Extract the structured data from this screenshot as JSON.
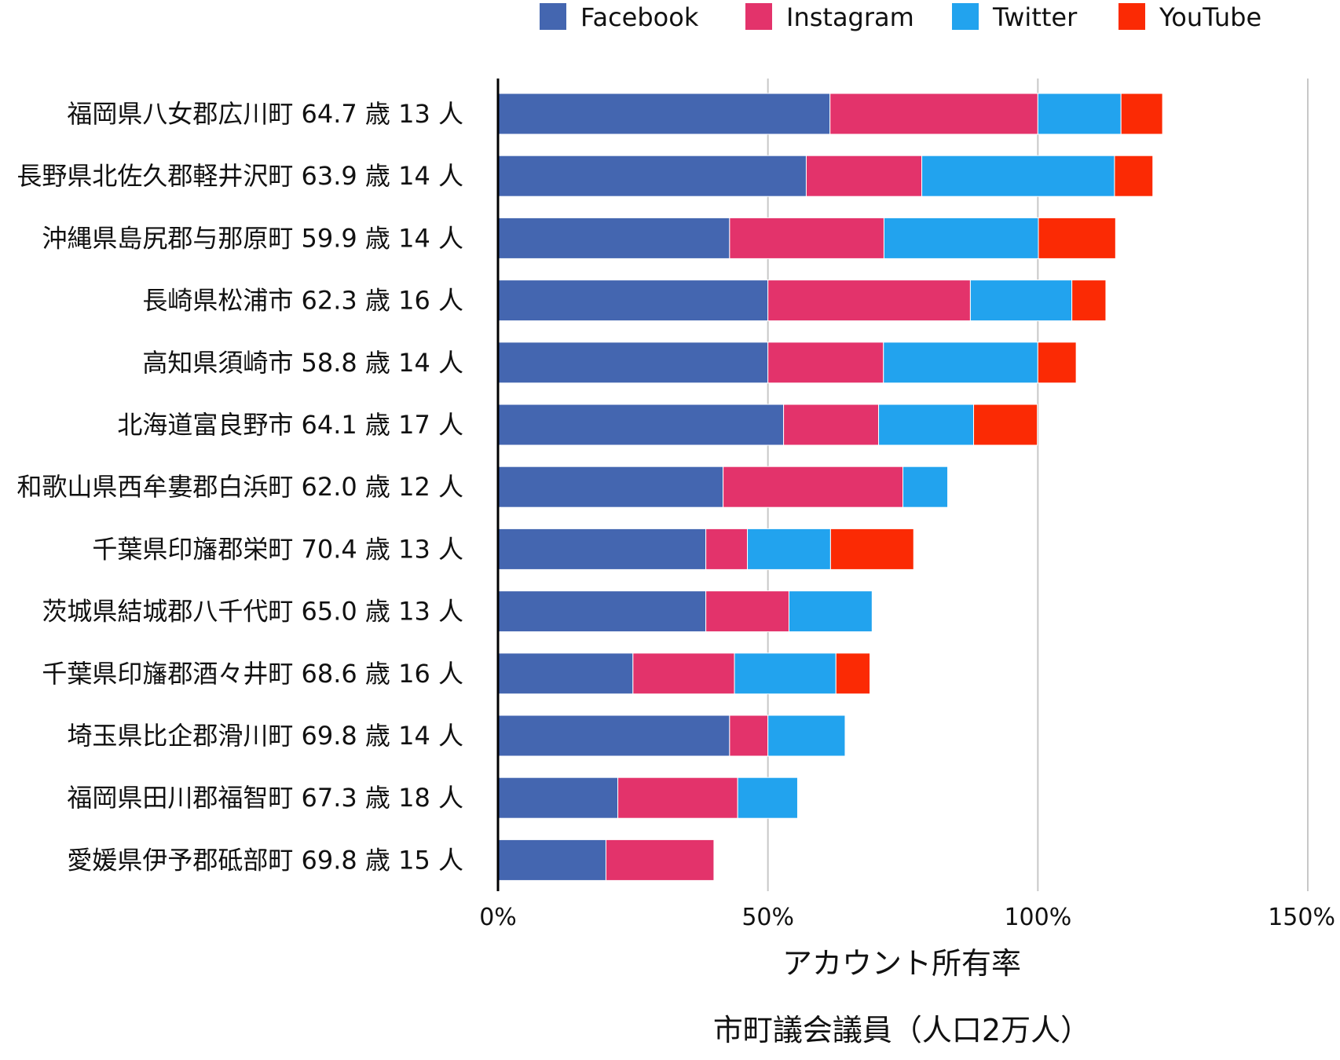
{
  "chart_data": {
    "type": "bar",
    "orientation": "horizontal",
    "stacked": true,
    "categories": [
      "福岡県八女郡広川町 64.7 歳 13 人",
      "長野県北佐久郡軽井沢町 63.9 歳 14 人",
      "沖縄県島尻郡与那原町 59.9 歳 14 人",
      "長崎県松浦市 62.3 歳 16 人",
      "高知県須崎市 58.8 歳 14 人",
      "北海道富良野市 64.1 歳 17 人",
      "和歌山県西牟婁郡白浜町 62.0 歳 12 人",
      "千葉県印旛郡栄町 70.4 歳 13 人",
      "茨城県結城郡八千代町 65.0 歳 13 人",
      "千葉県印旛郡酒々井町 68.6 歳 16 人",
      "埼玉県比企郡滑川町 69.8 歳 14 人",
      "福岡県田川郡福智町 67.3 歳 18 人",
      "愛媛県伊予郡砥部町 69.8 歳 15 人"
    ],
    "series": [
      {
        "name": "Facebook",
        "color": "#4466b0",
        "values": [
          61.5,
          57.1,
          42.9,
          50.0,
          50.0,
          52.9,
          41.7,
          38.5,
          38.5,
          25.0,
          42.9,
          22.2,
          20.0
        ]
      },
      {
        "name": "Instagram",
        "color": "#e3336b",
        "values": [
          38.5,
          21.4,
          28.6,
          37.5,
          21.4,
          17.6,
          33.3,
          7.7,
          15.4,
          18.8,
          7.1,
          22.2,
          20.0
        ]
      },
      {
        "name": "Twitter",
        "color": "#22a3ee",
        "values": [
          15.4,
          35.7,
          28.6,
          18.8,
          28.6,
          17.6,
          8.3,
          15.4,
          15.4,
          18.8,
          14.3,
          11.1,
          0
        ]
      },
      {
        "name": "YouTube",
        "color": "#fb2a04",
        "values": [
          7.7,
          7.1,
          14.3,
          6.3,
          7.1,
          11.8,
          0,
          15.4,
          0,
          6.3,
          0,
          0,
          0
        ]
      }
    ],
    "xlim": [
      0,
      150
    ],
    "xticks": [
      "0%",
      "50%",
      "100%",
      "150%"
    ],
    "xtick_values": [
      0,
      50,
      100,
      150
    ],
    "xlabel": "アカウント所有率",
    "subtitle": "市町議会議員（人口2万人）",
    "legend_position": "top",
    "grid": "vertical"
  }
}
